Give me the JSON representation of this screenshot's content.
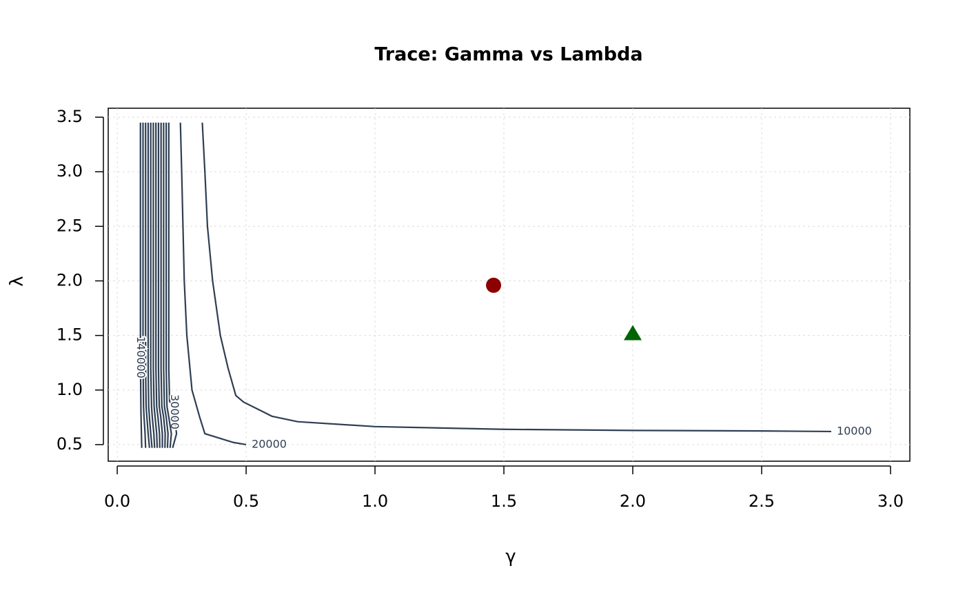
{
  "chart_data": {
    "type": "contour",
    "title": "Trace: Gamma vs Lambda",
    "x_label": "γ",
    "y_label": "λ",
    "xlim": [
      -0.035,
      3.075
    ],
    "ylim": [
      0.348,
      3.582
    ],
    "xticks": [
      {
        "value": 0,
        "label": "0.0"
      },
      0.5,
      {
        "value": 1,
        "label": "1.0"
      },
      1.5,
      {
        "value": 2,
        "label": "2.0"
      },
      2.5,
      {
        "value": 3,
        "label": "3.0"
      }
    ],
    "yticks": [
      0.5,
      {
        "value": 1,
        "label": "1.0"
      },
      1.5,
      {
        "value": 2,
        "label": "2.0"
      },
      2.5,
      {
        "value": 3,
        "label": "3.0"
      },
      3.5
    ],
    "grid": true,
    "line_color": "#2e3e52",
    "contours": [
      {
        "label": "10000",
        "x": [
          0.33,
          0.34,
          0.35,
          0.37,
          0.4,
          0.43,
          0.46,
          0.49,
          0.6,
          0.7,
          1.0,
          1.5,
          2.0,
          2.5,
          2.77
        ],
        "y": [
          3.45,
          3.0,
          2.5,
          2.0,
          1.5,
          1.2,
          0.95,
          0.89,
          0.76,
          0.71,
          0.665,
          0.64,
          0.63,
          0.625,
          0.62
        ]
      },
      {
        "label": "20000",
        "x": [
          0.245,
          0.25,
          0.255,
          0.26,
          0.27,
          0.29,
          0.32,
          0.34,
          0.45,
          0.5
        ],
        "y": [
          3.45,
          3.0,
          2.5,
          2.0,
          1.5,
          1.0,
          0.75,
          0.6,
          0.52,
          0.5
        ]
      },
      {
        "label": "30000",
        "x": [
          0.2,
          0.2,
          0.203,
          0.22,
          0.23,
          0.215
        ],
        "y": [
          3.45,
          1.2,
          0.9,
          0.8,
          0.6,
          0.47
        ]
      },
      {
        "x": [
          0.19,
          0.19,
          0.193,
          0.2,
          0.21,
          0.205
        ],
        "y": [
          3.45,
          1.2,
          0.85,
          0.75,
          0.6,
          0.47
        ]
      },
      {
        "x": [
          0.18,
          0.18,
          0.183,
          0.19,
          0.197,
          0.195
        ],
        "y": [
          3.45,
          1.2,
          0.85,
          0.75,
          0.6,
          0.47
        ]
      },
      {
        "x": [
          0.17,
          0.17,
          0.173,
          0.18,
          0.186,
          0.185
        ],
        "y": [
          3.45,
          1.2,
          0.85,
          0.75,
          0.6,
          0.47
        ]
      },
      {
        "x": [
          0.16,
          0.16,
          0.163,
          0.169,
          0.175,
          0.175
        ],
        "y": [
          3.45,
          1.2,
          0.85,
          0.75,
          0.6,
          0.47
        ]
      },
      {
        "x": [
          0.15,
          0.15,
          0.153,
          0.158,
          0.164,
          0.165
        ],
        "y": [
          3.45,
          1.2,
          0.85,
          0.75,
          0.6,
          0.47
        ]
      },
      {
        "x": [
          0.14,
          0.14,
          0.143,
          0.147,
          0.153,
          0.155
        ],
        "y": [
          3.45,
          1.2,
          0.85,
          0.75,
          0.6,
          0.47
        ]
      },
      {
        "x": [
          0.13,
          0.13,
          0.133,
          0.136,
          0.142,
          0.145
        ],
        "y": [
          3.45,
          1.2,
          0.85,
          0.75,
          0.6,
          0.47
        ]
      },
      {
        "x": [
          0.12,
          0.12,
          0.122,
          0.125,
          0.13,
          0.135
        ],
        "y": [
          3.45,
          1.2,
          0.85,
          0.75,
          0.6,
          0.47
        ]
      },
      {
        "x": [
          0.11,
          0.11,
          0.112,
          0.115,
          0.12,
          0.125
        ],
        "y": [
          3.45,
          1.2,
          0.85,
          0.75,
          0.6,
          0.47
        ]
      },
      {
        "x": [
          0.1,
          0.1,
          0.102,
          0.104,
          0.108,
          0.11
        ],
        "y": [
          3.45,
          1.3,
          0.85,
          0.75,
          0.6,
          0.47
        ]
      },
      {
        "label": "140000",
        "x": [
          0.09,
          0.09,
          0.09,
          0.092,
          0.095
        ],
        "y": [
          3.45,
          1.8,
          1.3,
          0.8,
          0.47
        ]
      }
    ],
    "points": [
      {
        "shape": "circle",
        "color": "#8b0000",
        "x": 1.46,
        "y": 1.96
      },
      {
        "shape": "triangle",
        "color": "#006400",
        "x": 2.0,
        "y": 1.52
      }
    ]
  }
}
